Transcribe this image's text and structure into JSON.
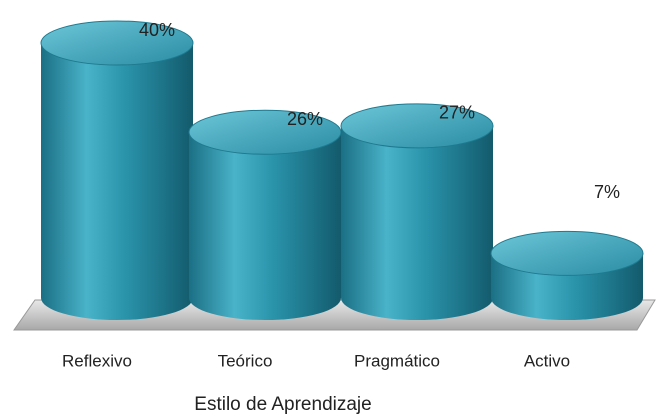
{
  "chart_data": {
    "type": "bar",
    "x_label": "Estilo de Aprendizaje",
    "categories": [
      "Reflexivo",
      "Teórico",
      "Pragmático",
      "Activo"
    ],
    "values": [
      40,
      26,
      27,
      7
    ],
    "value_labels": [
      "40%",
      "26%",
      "27%",
      "7%"
    ],
    "color": "#2a8ca3"
  }
}
